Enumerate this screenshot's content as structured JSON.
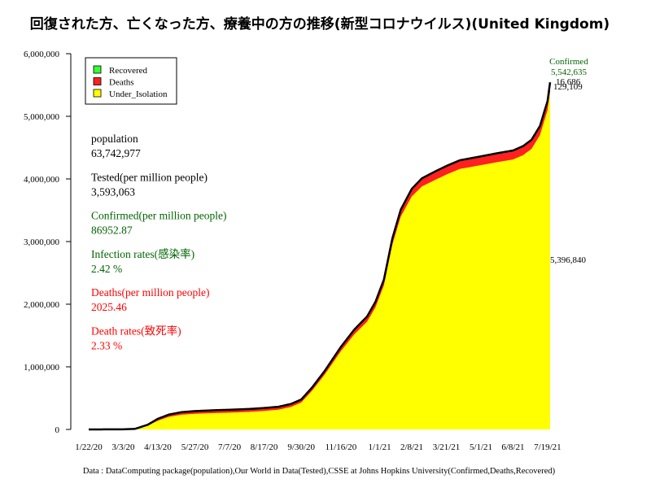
{
  "chart_data": {
    "type": "area",
    "title": "回復された方、亡くなった方、療養中の方の推移(新型コロナウイルス)(United Kingdom)",
    "ylim": [
      0,
      6000000
    ],
    "y_ticks": [
      0,
      1000000,
      2000000,
      3000000,
      4000000,
      5000000,
      6000000
    ],
    "y_tick_labels": [
      "0",
      "1,000,000",
      "2,000,000",
      "3,000,000",
      "4,000,000",
      "5,000,000",
      "6,000,000"
    ],
    "x_tick_labels": [
      "1/22/20",
      "3/3/20",
      "4/13/20",
      "5/27/20",
      "7/7/20",
      "8/17/20",
      "9/30/20",
      "11/16/20",
      "1/1/21",
      "2/8/21",
      "3/21/21",
      "5/1/21",
      "6/8/21",
      "7/19/21"
    ],
    "x_tick_days": [
      0,
      41,
      82,
      126,
      167,
      208,
      252,
      299,
      345,
      383,
      424,
      465,
      503,
      544
    ],
    "last_day": 547,
    "series": [
      {
        "name": "Under_Isolation",
        "color": "#ffff00",
        "points": [
          [
            0,
            0
          ],
          [
            41,
            2000
          ],
          [
            55,
            8000
          ],
          [
            70,
            60000
          ],
          [
            82,
            140000
          ],
          [
            95,
            200000
          ],
          [
            110,
            235000
          ],
          [
            126,
            250000
          ],
          [
            150,
            262000
          ],
          [
            167,
            268000
          ],
          [
            190,
            280000
          ],
          [
            208,
            295000
          ],
          [
            225,
            315000
          ],
          [
            240,
            360000
          ],
          [
            252,
            430000
          ],
          [
            265,
            620000
          ],
          [
            280,
            880000
          ],
          [
            299,
            1250000
          ],
          [
            315,
            1520000
          ],
          [
            330,
            1720000
          ],
          [
            340,
            1950000
          ],
          [
            350,
            2300000
          ],
          [
            360,
            2950000
          ],
          [
            370,
            3400000
          ],
          [
            383,
            3720000
          ],
          [
            395,
            3880000
          ],
          [
            410,
            3980000
          ],
          [
            424,
            4070000
          ],
          [
            440,
            4160000
          ],
          [
            465,
            4220000
          ],
          [
            485,
            4270000
          ],
          [
            503,
            4310000
          ],
          [
            515,
            4380000
          ],
          [
            525,
            4480000
          ],
          [
            535,
            4700000
          ],
          [
            544,
            5100000
          ],
          [
            547,
            5396840
          ]
        ]
      },
      {
        "name": "Deaths",
        "color": "#ff2020",
        "points": [
          [
            0,
            0
          ],
          [
            41,
            0
          ],
          [
            55,
            1000
          ],
          [
            70,
            15000
          ],
          [
            82,
            30000
          ],
          [
            95,
            37000
          ],
          [
            110,
            41000
          ],
          [
            126,
            43000
          ],
          [
            150,
            45000
          ],
          [
            167,
            46000
          ],
          [
            190,
            46500
          ],
          [
            208,
            47000
          ],
          [
            225,
            47000
          ],
          [
            240,
            47500
          ],
          [
            252,
            48000
          ],
          [
            265,
            52000
          ],
          [
            280,
            58000
          ],
          [
            299,
            68000
          ],
          [
            315,
            75000
          ],
          [
            330,
            80000
          ],
          [
            340,
            85000
          ],
          [
            350,
            90000
          ],
          [
            360,
            95000
          ],
          [
            370,
            105000
          ],
          [
            383,
            115000
          ],
          [
            395,
            122000
          ],
          [
            410,
            126000
          ],
          [
            424,
            127000
          ],
          [
            440,
            127500
          ],
          [
            465,
            128000
          ],
          [
            485,
            128500
          ],
          [
            503,
            128500
          ],
          [
            515,
            128800
          ],
          [
            525,
            128900
          ],
          [
            535,
            129000
          ],
          [
            544,
            129050
          ],
          [
            547,
            129109
          ]
        ]
      },
      {
        "name": "Recovered",
        "color": "#00ff00",
        "points": [
          [
            0,
            0
          ],
          [
            82,
            300
          ],
          [
            126,
            300
          ],
          [
            208,
            300
          ],
          [
            300,
            400
          ],
          [
            400,
            8000
          ],
          [
            500,
            15000
          ],
          [
            547,
            16686
          ]
        ]
      }
    ],
    "confirmed_series": {
      "name": "Confirmed",
      "color": "#000000"
    },
    "legend": [
      {
        "label": "Recovered",
        "color": "#33ff33"
      },
      {
        "label": "Deaths",
        "color": "#ff2020"
      },
      {
        "label": "Under_Isolation",
        "color": "#ffff00"
      }
    ],
    "end_labels": {
      "confirmed_title": "Confirmed",
      "confirmed_value": "5,542,635",
      "recovered_value": "16,686",
      "deaths_value": "129,109",
      "isolation_value": "5,396,840"
    },
    "stats": [
      {
        "label": "population",
        "value": "63,742,977",
        "color": "#000000"
      },
      {
        "label": "Tested(per million people)",
        "value": "3,593,063",
        "color": "#000000"
      },
      {
        "label": "Confirmed(per million people)",
        "value": "86952.87",
        "color": "#006400"
      },
      {
        "label": "Infection rates(感染率)",
        "value": "2.42 %",
        "color": "#006400"
      },
      {
        "label": "Deaths(per million people)",
        "value": "2025.46",
        "color": "#ff0000"
      },
      {
        "label": "Death rates(致死率)",
        "value": "2.33 %",
        "color": "#ff0000"
      }
    ],
    "source": "Data : DataComputing package(population),Our World in Data(Tested),CSSE at Johns Hopkins University(Confirmed,Deaths,Recovered)"
  }
}
